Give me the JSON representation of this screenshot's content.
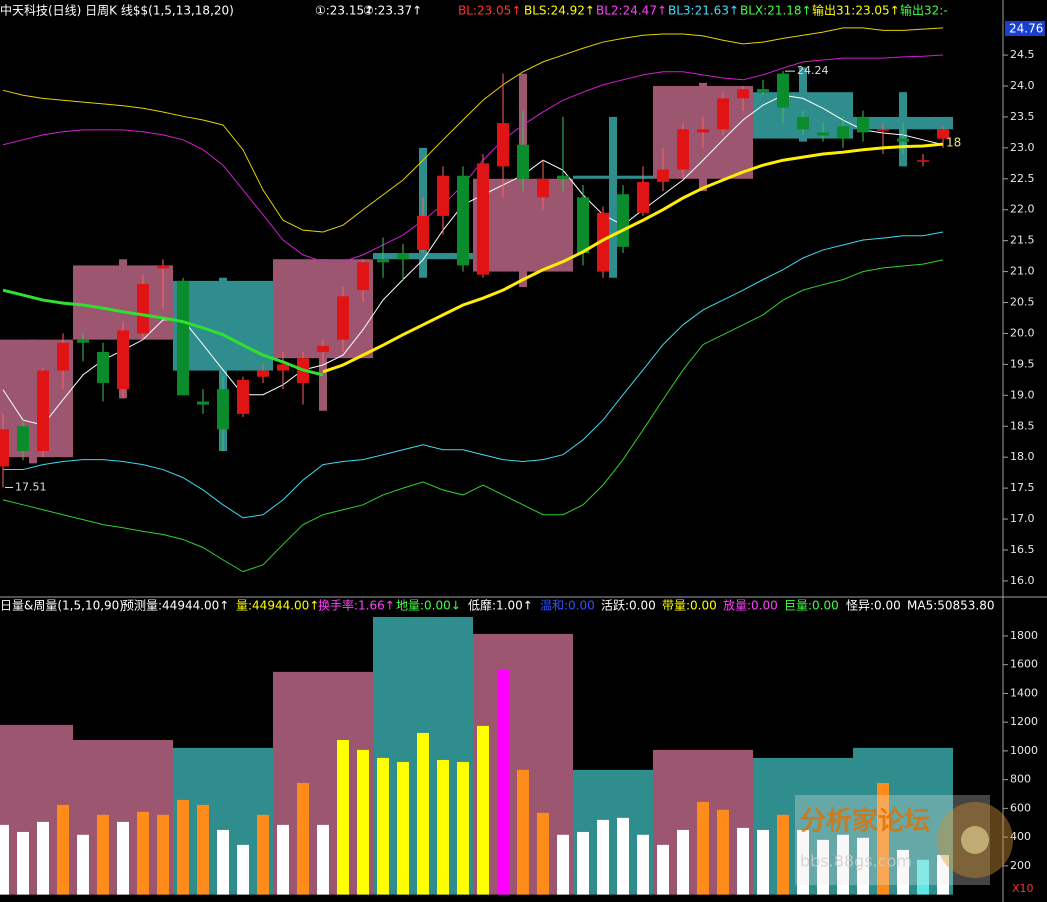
{
  "chart_data": [
    {
      "type": "candlestick",
      "title": "中天科技(日线) 日周K 线$$(1,5,13,18,20)",
      "indicators": [
        {
          "text": "①:23.15↑",
          "color": "#ffffff"
        },
        {
          "text": "②:23.37↑",
          "color": "#ffffff"
        },
        {
          "text": "BL:23.05↑",
          "color": "#ff3030"
        },
        {
          "text": "BLS:24.92↑",
          "color": "#ffff00"
        },
        {
          "text": "BL2:24.47↑",
          "color": "#ff40ff"
        },
        {
          "text": "BL3:21.63↑",
          "color": "#40e0ff"
        },
        {
          "text": "BLX:21.18↑",
          "color": "#40ff40"
        },
        {
          "text": "输出31:23.05↑",
          "color": "#ffff00"
        },
        {
          "text": "输出32:-",
          "color": "#40ff40"
        }
      ],
      "cursor_price": 24.76,
      "price_tag": "18",
      "categories": [
        null,
        null,
        null,
        null,
        null,
        null,
        null,
        null,
        null,
        null,
        null,
        null,
        null,
        null,
        null,
        null,
        null,
        null,
        null,
        null,
        null,
        null,
        null,
        null,
        null,
        null,
        null,
        null,
        null,
        null,
        null,
        null,
        null,
        null,
        null,
        null,
        null,
        null,
        null,
        null,
        null,
        null,
        null,
        null,
        null,
        null,
        null,
        null
      ],
      "open": [
        17.85,
        18.5,
        18.1,
        19.4,
        19.9,
        19.7,
        19.1,
        20.0,
        21.05,
        20.85,
        18.9,
        19.1,
        18.7,
        19.3,
        19.4,
        19.2,
        19.7,
        19.9,
        20.7,
        21.2,
        21.3,
        21.35,
        21.9,
        22.55,
        20.95,
        22.7,
        23.05,
        22.2,
        22.55,
        22.2,
        21.0,
        22.25,
        21.95,
        22.45,
        22.65,
        23.25,
        23.3,
        23.8,
        23.95,
        24.2,
        23.5,
        23.25,
        23.35,
        23.5,
        23.3,
        23.15,
        22.8,
        23.15
      ],
      "high": [
        18.7,
        18.6,
        19.45,
        20.0,
        20.0,
        19.85,
        20.2,
        20.95,
        21.2,
        20.9,
        19.1,
        19.3,
        19.3,
        19.5,
        19.7,
        19.7,
        19.9,
        20.75,
        21.2,
        21.55,
        21.45,
        22.2,
        22.7,
        22.7,
        22.9,
        24.2,
        23.6,
        22.8,
        23.5,
        22.4,
        22.05,
        22.4,
        22.7,
        23.0,
        23.4,
        23.5,
        23.9,
        24.0,
        24.1,
        24.24,
        23.6,
        23.4,
        23.5,
        23.6,
        23.4,
        23.4,
        22.9,
        23.35
      ],
      "low": [
        17.51,
        17.95,
        18.0,
        19.1,
        19.55,
        18.9,
        18.95,
        19.9,
        20.4,
        19.0,
        18.7,
        18.1,
        18.65,
        19.2,
        19.1,
        18.85,
        19.5,
        19.7,
        20.5,
        20.9,
        20.85,
        21.3,
        21.6,
        21.0,
        20.9,
        22.2,
        22.3,
        22.0,
        22.3,
        21.1,
        20.9,
        21.3,
        21.9,
        22.3,
        22.5,
        23.0,
        23.2,
        23.6,
        23.85,
        23.4,
        23.2,
        23.1,
        23.0,
        23.1,
        22.9,
        22.9,
        22.7,
        23.0
      ],
      "close": [
        18.45,
        18.1,
        19.4,
        19.85,
        19.85,
        19.2,
        20.05,
        20.8,
        21.1,
        19.0,
        18.85,
        18.45,
        19.25,
        19.4,
        19.5,
        19.6,
        19.8,
        20.6,
        21.15,
        21.15,
        21.2,
        21.9,
        22.55,
        21.1,
        22.75,
        23.4,
        22.5,
        22.5,
        22.5,
        21.3,
        21.95,
        21.4,
        22.45,
        22.65,
        23.3,
        23.3,
        23.8,
        23.95,
        23.9,
        23.65,
        23.3,
        23.2,
        23.15,
        23.25,
        23.3,
        23.1,
        22.8,
        23.3
      ],
      "up_color": "#e01414",
      "down_color": "#0a8c2c",
      "weekly": {
        "days": [
          4,
          5,
          5,
          5,
          5,
          5,
          4,
          5,
          5,
          5
        ],
        "open": [
          18.0,
          19.9,
          20.85,
          19.6,
          21.3,
          21.0,
          22.55,
          22.5,
          23.9,
          23.5
        ],
        "high": [
          19.9,
          21.2,
          20.9,
          21.2,
          23.0,
          24.2,
          23.5,
          24.05,
          24.3,
          23.9
        ],
        "low": [
          17.9,
          18.95,
          18.1,
          18.75,
          20.9,
          20.75,
          20.9,
          22.3,
          23.1,
          22.7
        ],
        "close": [
          19.9,
          21.1,
          19.4,
          21.2,
          21.2,
          22.5,
          22.5,
          24.0,
          23.15,
          23.3
        ],
        "up_color": "#9c5670",
        "down_color": "#2f8d8d"
      },
      "lines": [
        {
          "color": "#e6d200",
          "width": 1,
          "values": [
            23.93,
            23.85,
            23.8,
            23.77,
            23.74,
            23.71,
            23.68,
            23.64,
            23.58,
            23.51,
            23.45,
            23.37,
            22.97,
            22.32,
            21.83,
            21.67,
            21.64,
            21.75,
            22.0,
            22.24,
            22.48,
            22.8,
            23.13,
            23.45,
            23.77,
            24.02,
            24.23,
            24.39,
            24.5,
            24.61,
            24.71,
            24.77,
            24.82,
            24.84,
            24.84,
            24.81,
            24.74,
            24.68,
            24.71,
            24.77,
            24.82,
            24.87,
            24.94,
            24.94,
            24.9,
            24.9,
            24.92,
            24.94
          ]
        },
        {
          "color": "#d020d0",
          "width": 1,
          "values": [
            23.05,
            23.13,
            23.21,
            23.26,
            23.29,
            23.29,
            23.29,
            23.26,
            23.21,
            23.13,
            22.97,
            22.72,
            22.32,
            21.92,
            21.51,
            21.27,
            21.16,
            21.16,
            21.27,
            21.43,
            21.59,
            21.83,
            22.08,
            22.4,
            22.8,
            23.13,
            23.37,
            23.58,
            23.77,
            23.9,
            24.02,
            24.1,
            24.18,
            24.23,
            24.23,
            24.18,
            24.13,
            24.1,
            24.18,
            24.29,
            24.39,
            24.42,
            24.45,
            24.45,
            24.45,
            24.47,
            24.48,
            24.5
          ]
        },
        {
          "color": "#40d8f0",
          "width": 1,
          "values": [
            17.8,
            17.8,
            17.88,
            17.93,
            17.96,
            17.96,
            17.93,
            17.88,
            17.8,
            17.67,
            17.47,
            17.23,
            17.02,
            17.07,
            17.31,
            17.63,
            17.88,
            17.93,
            17.96,
            18.04,
            18.12,
            18.2,
            18.12,
            18.12,
            18.04,
            17.96,
            17.93,
            17.96,
            18.04,
            18.28,
            18.6,
            19.01,
            19.41,
            19.82,
            20.14,
            20.38,
            20.54,
            20.7,
            20.87,
            21.03,
            21.22,
            21.35,
            21.43,
            21.51,
            21.54,
            21.58,
            21.58,
            21.64
          ]
        },
        {
          "color": "#30d030",
          "width": 1,
          "values": [
            17.31,
            17.23,
            17.15,
            17.07,
            16.99,
            16.91,
            16.86,
            16.8,
            16.75,
            16.67,
            16.54,
            16.34,
            16.15,
            16.26,
            16.59,
            16.91,
            17.07,
            17.15,
            17.23,
            17.39,
            17.5,
            17.6,
            17.47,
            17.39,
            17.55,
            17.39,
            17.23,
            17.07,
            17.07,
            17.23,
            17.55,
            17.96,
            18.44,
            18.93,
            19.41,
            19.82,
            19.98,
            20.14,
            20.3,
            20.54,
            20.7,
            20.79,
            20.87,
            21.0,
            21.06,
            21.09,
            21.12,
            21.19
          ]
        },
        {
          "color": "#ffffff",
          "width": 1,
          "values": [
            19.09,
            18.6,
            18.52,
            18.93,
            19.33,
            19.57,
            19.73,
            19.9,
            20.22,
            20.22,
            19.82,
            19.41,
            19.01,
            19.01,
            19.17,
            19.41,
            19.49,
            19.65,
            20.06,
            20.54,
            20.87,
            21.19,
            21.67,
            22.08,
            22.24,
            22.4,
            22.56,
            22.8,
            22.64,
            22.24,
            21.92,
            21.75,
            22.0,
            22.24,
            22.48,
            22.8,
            23.13,
            23.45,
            23.69,
            23.85,
            23.8,
            23.64,
            23.45,
            23.29,
            23.24,
            23.21,
            23.13,
            23.05
          ]
        },
        {
          "color": "#30e030",
          "width": 3,
          "values": [
            20.7,
            20.62,
            20.54,
            20.49,
            20.46,
            20.41,
            20.35,
            20.3,
            20.25,
            20.19,
            20.09,
            19.98,
            19.81,
            19.65,
            19.54,
            19.41,
            19.33,
            null,
            null,
            null,
            null,
            null,
            null,
            null,
            null,
            null,
            null,
            null,
            null,
            null,
            null,
            null,
            null,
            null,
            null,
            null,
            null,
            null,
            null,
            null,
            null,
            null,
            null,
            null,
            null,
            null,
            null,
            null
          ]
        },
        {
          "color": "#ffee00",
          "width": 3,
          "values": [
            null,
            null,
            null,
            null,
            null,
            null,
            null,
            null,
            null,
            null,
            null,
            null,
            null,
            null,
            null,
            null,
            19.38,
            19.49,
            19.65,
            19.81,
            19.98,
            20.14,
            20.3,
            20.46,
            20.57,
            20.7,
            20.87,
            21.03,
            21.16,
            21.32,
            21.51,
            21.67,
            21.83,
            22.0,
            22.19,
            22.35,
            22.48,
            22.61,
            22.72,
            22.8,
            22.85,
            22.9,
            22.93,
            22.97,
            23.0,
            23.02,
            23.03,
            23.06
          ]
        }
      ],
      "ylim": [
        15.74,
        25.39
      ],
      "yticks": [
        {
          "value": 16,
          "label": "16.0"
        },
        16.5,
        {
          "value": 17,
          "label": "17.0"
        },
        17.5,
        {
          "value": 18,
          "label": "18.0"
        },
        18.5,
        {
          "value": 19,
          "label": "19.0"
        },
        19.5,
        {
          "value": 20,
          "label": "20.0"
        },
        20.5,
        {
          "value": 21,
          "label": "21.0"
        },
        21.5,
        {
          "value": 22,
          "label": "22.0"
        },
        22.5,
        {
          "value": 23,
          "label": "23.0"
        },
        23.5,
        {
          "value": 24,
          "label": "24.0"
        },
        24.5
      ]
    },
    {
      "type": "volume",
      "title": "日量&周量(1,5,10,90)",
      "indicators": [
        {
          "text": "预测量:44944.00↑",
          "color": "#ffffff"
        },
        {
          "text": "量:44944.00↑",
          "color": "#ffff00"
        },
        {
          "text": "换手率:1.66↑",
          "color": "#ff40ff"
        },
        {
          "text": "地量:0.00↓",
          "color": "#40ff40"
        },
        {
          "text": "低靡:1.00↑",
          "color": "#ffffff"
        },
        {
          "text": "温和:0.00",
          "color": "#3050ff"
        },
        {
          "text": "活跃:0.00",
          "color": "#ffffff"
        },
        {
          "text": "带量:0.00",
          "color": "#ffff00"
        },
        {
          "text": "放量:0.00",
          "color": "#ff40ff"
        },
        {
          "text": "巨量:0.00",
          "color": "#40ff40"
        },
        {
          "text": "怪异:0.00",
          "color": "#ffffff"
        },
        {
          "text": "MA5:50853.80",
          "color": "#ffffff"
        }
      ],
      "multiplier_label": "X10",
      "categories": [
        null,
        null,
        null,
        null,
        null,
        null,
        null,
        null,
        null,
        null,
        null,
        null,
        null,
        null,
        null,
        null,
        null,
        null,
        null,
        null,
        null,
        null,
        null,
        null,
        null,
        null,
        null,
        null,
        null,
        null,
        null,
        null,
        null,
        null,
        null,
        null,
        null,
        null,
        null,
        null,
        null,
        null,
        null,
        null,
        null,
        null,
        null,
        null
      ],
      "values": [
        485,
        436,
        506,
        624,
        416,
        555,
        506,
        576,
        555,
        659,
        624,
        450,
        346,
        555,
        485,
        777,
        485,
        1076,
        1007,
        951,
        923,
        1125,
        937,
        923,
        1174,
        1563,
        868,
        569,
        416,
        436,
        520,
        534,
        416,
        346,
        450,
        645,
        590,
        464,
        450,
        555,
        450,
        381,
        416,
        395,
        777,
        311,
        242,
        276
      ],
      "colors": [
        "#ffffff",
        "#ffffff",
        "#ffffff",
        "#ff8c1a",
        "#ffffff",
        "#ff8c1a",
        "#ffffff",
        "#ff8c1a",
        "#ff8c1a",
        "#ff8c1a",
        "#ff8c1a",
        "#ffffff",
        "#ffffff",
        "#ff8c1a",
        "#ffffff",
        "#ff8c1a",
        "#ffffff",
        "#ffff00",
        "#ffff00",
        "#ffff00",
        "#ffff00",
        "#ffff00",
        "#ffff00",
        "#ffff00",
        "#ffff00",
        "#ff00ff",
        "#ff8c1a",
        "#ff8c1a",
        "#ffffff",
        "#ffffff",
        "#ffffff",
        "#ffffff",
        "#ffffff",
        "#ffffff",
        "#ffffff",
        "#ff8c1a",
        "#ff8c1a",
        "#ffffff",
        "#ffffff",
        "#ff8c1a",
        "#ffffff",
        "#ffffff",
        "#ffffff",
        "#ffffff",
        "#ff8c1a",
        "#ffffff",
        "#5fe8e8",
        "#ffffff"
      ],
      "weekly": {
        "days": [
          4,
          5,
          5,
          5,
          5,
          5,
          4,
          5,
          5,
          5
        ],
        "values": [
          1181,
          1076,
          1021,
          1550,
          1932,
          1814,
          868,
          1007,
          951,
          1021
        ],
        "colors": [
          "#9c5670",
          "#9c5670",
          "#2f8d8d",
          "#9c5670",
          "#2f8d8d",
          "#9c5670",
          "#2f8d8d",
          "#9c5670",
          "#2f8d8d",
          "#2f8d8d"
        ]
      },
      "ylim": [
        0,
        2050
      ],
      "yticks": [
        200,
        400,
        600,
        800,
        1000,
        1200,
        1400,
        1600,
        1800
      ]
    }
  ],
  "watermark": {
    "title": "分析家论坛",
    "url": "bbs.88gs.com"
  }
}
